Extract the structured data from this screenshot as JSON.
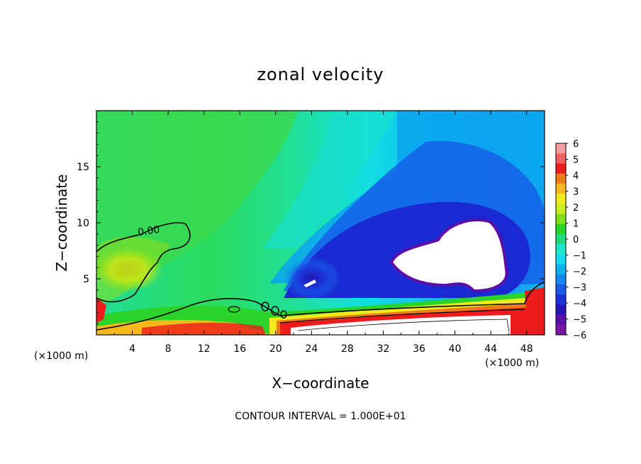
{
  "chart_data": {
    "type": "contour",
    "title": "zonal velocity",
    "xlabel": "X−coordinate",
    "ylabel": "Z−coordinate",
    "x_unit_left": "(×1000 m)",
    "x_unit_right": "(×1000 m)",
    "xlim": [
      0,
      50
    ],
    "ylim": [
      0,
      20
    ],
    "x_ticks": [
      4,
      8,
      12,
      16,
      20,
      24,
      28,
      32,
      36,
      40,
      44,
      48
    ],
    "y_ticks": [
      5,
      10,
      15
    ],
    "contour_label": "0.00",
    "footer": "CONTOUR INTERVAL = 1.000E+01",
    "colorbar": {
      "ticks": [
        6,
        5,
        4,
        3,
        2,
        1,
        0,
        "−1",
        "−2",
        "−3",
        "−4",
        "−5",
        "−6"
      ],
      "colors": [
        "#f4a0a0",
        "#f46060",
        "#ee1c1c",
        "#f07a1a",
        "#f7b81c",
        "#f2ea1a",
        "#c9ec1a",
        "#7ee01a",
        "#2bd42b",
        "#1fdd7c",
        "#1fe6c8",
        "#11dcf2",
        "#0db2ee",
        "#1488ee",
        "#1a5ae6",
        "#1a30d8",
        "#2414b4",
        "#5a0fa8",
        "#7a16a2"
      ]
    }
  }
}
